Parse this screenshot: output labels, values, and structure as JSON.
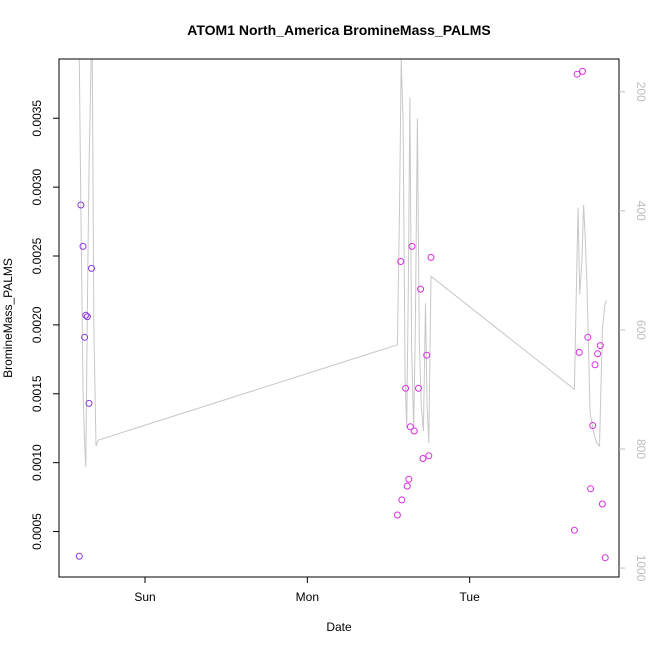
{
  "chart_data": {
    "type": "scatter",
    "title": "ATOM1 North_America BromineMass_PALMS",
    "xlabel": "Date",
    "ylabel": "BromineMass_PALMS",
    "x_ticks": [
      {
        "label": "Sun",
        "value": 1.0
      },
      {
        "label": "Mon",
        "value": 2.0
      },
      {
        "label": "Tue",
        "value": 3.0
      }
    ],
    "xlim": [
      0.47,
      3.92
    ],
    "ylim": [
      0.00017,
      0.00393
    ],
    "y_ticks": [
      {
        "label": "0.0005",
        "value": 0.0005
      },
      {
        "label": "0.0010",
        "value": 0.001
      },
      {
        "label": "0.0015",
        "value": 0.0015
      },
      {
        "label": "0.0020",
        "value": 0.002
      },
      {
        "label": "0.0025",
        "value": 0.0025
      },
      {
        "label": "0.0030",
        "value": 0.003
      },
      {
        "label": "0.0035",
        "value": 0.0035
      }
    ],
    "y2lim": [
      1015,
      145
    ],
    "y2_ticks": [
      {
        "label": "200",
        "value": 200
      },
      {
        "label": "400",
        "value": 400
      },
      {
        "label": "600",
        "value": 600
      },
      {
        "label": "800",
        "value": 800
      },
      {
        "label": "1000",
        "value": 1000
      }
    ],
    "grid": false,
    "colors": {
      "points": "#d92ee0",
      "points_early": "#8a3ae6",
      "line": "#c8c8c8"
    },
    "points": [
      {
        "x": 0.595,
        "y": 0.00032
      },
      {
        "x": 0.605,
        "y": 0.00287
      },
      {
        "x": 0.618,
        "y": 0.00257
      },
      {
        "x": 0.628,
        "y": 0.00191
      },
      {
        "x": 0.635,
        "y": 0.00207
      },
      {
        "x": 0.645,
        "y": 0.00206
      },
      {
        "x": 0.655,
        "y": 0.00143
      },
      {
        "x": 0.67,
        "y": 0.00241
      },
      {
        "x": 2.555,
        "y": 0.00062
      },
      {
        "x": 2.575,
        "y": 0.00246
      },
      {
        "x": 2.582,
        "y": 0.00073
      },
      {
        "x": 2.605,
        "y": 0.00154
      },
      {
        "x": 2.615,
        "y": 0.00083
      },
      {
        "x": 2.625,
        "y": 0.00088
      },
      {
        "x": 2.635,
        "y": 0.00126
      },
      {
        "x": 2.645,
        "y": 0.00257
      },
      {
        "x": 2.658,
        "y": 0.00123
      },
      {
        "x": 2.685,
        "y": 0.00154
      },
      {
        "x": 2.698,
        "y": 0.00226
      },
      {
        "x": 2.712,
        "y": 0.00103
      },
      {
        "x": 2.735,
        "y": 0.00178
      },
      {
        "x": 2.748,
        "y": 0.00105
      },
      {
        "x": 2.762,
        "y": 0.00249
      },
      {
        "x": 3.645,
        "y": 0.00051
      },
      {
        "x": 3.662,
        "y": 0.00382
      },
      {
        "x": 3.675,
        "y": 0.0018
      },
      {
        "x": 3.695,
        "y": 0.00384
      },
      {
        "x": 3.728,
        "y": 0.00191
      },
      {
        "x": 3.745,
        "y": 0.00081
      },
      {
        "x": 3.758,
        "y": 0.00127
      },
      {
        "x": 3.772,
        "y": 0.00171
      },
      {
        "x": 3.788,
        "y": 0.00179
      },
      {
        "x": 3.805,
        "y": 0.00185
      },
      {
        "x": 3.818,
        "y": 0.0007
      },
      {
        "x": 3.835,
        "y": 0.00031
      }
    ],
    "line_series": {
      "name": "",
      "axis": "right",
      "x": [
        0.595,
        0.605,
        0.618,
        0.628,
        0.635,
        0.645,
        0.655,
        0.668,
        0.675,
        0.685,
        0.698,
        0.712,
        2.555,
        2.568,
        2.578,
        2.59,
        2.602,
        2.612,
        2.622,
        2.632,
        2.642,
        2.655,
        2.665,
        2.678,
        2.69,
        2.702,
        2.715,
        2.728,
        2.738,
        2.748,
        2.762,
        3.645,
        3.658,
        3.668,
        3.678,
        3.692,
        3.702,
        3.712,
        3.722,
        3.742,
        3.762,
        3.782,
        3.8,
        3.818,
        3.832,
        3.842
      ],
      "y": [
        145,
        400,
        700,
        790,
        830,
        560,
        330,
        145,
        145,
        600,
        795,
        785,
        625,
        400,
        145,
        250,
        680,
        765,
        530,
        210,
        630,
        765,
        600,
        245,
        620,
        730,
        770,
        555,
        730,
        790,
        510,
        700,
        520,
        395,
        540,
        480,
        390,
        445,
        520,
        740,
        770,
        790,
        795,
        600,
        560,
        550
      ]
    }
  }
}
